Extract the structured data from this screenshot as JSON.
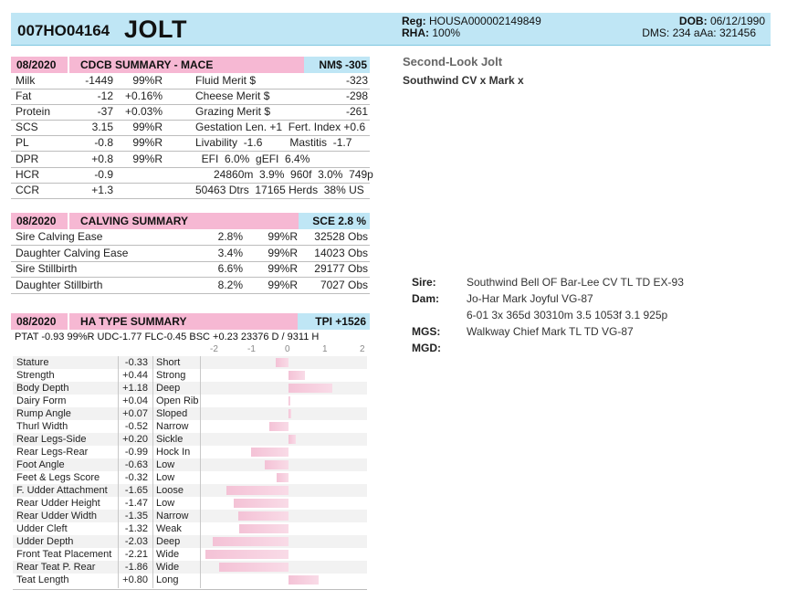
{
  "header": {
    "reg_code": "007HO04164",
    "name": "JOLT",
    "reg_label": "Reg:",
    "reg_value": "HOUSA000002149849",
    "rha_label": "RHA:",
    "rha_value": "100%",
    "dob_label": "DOB:",
    "dob_value": "06/12/1990",
    "dms_text": "DMS: 234  aAa: 321456"
  },
  "side": {
    "title": "Second-Look Jolt",
    "lineage": "Southwind CV x Mark x",
    "sire_label": "Sire:",
    "sire": "Southwind Bell OF Bar-Lee CV TL TD EX-93",
    "dam_label": "Dam:",
    "dam": "Jo-Har Mark Joyful VG-87",
    "dam_record": "6-01 3x 365d 30310m 3.5 1053f 3.1 925p",
    "mgs_label": "MGS:",
    "mgs": "Walkway Chief Mark TL TD VG-87",
    "mgd_label": "MGD:"
  },
  "cdcb": {
    "date": "08/2020",
    "title": "CDCB SUMMARY - MACE",
    "badge": "NM$ -305",
    "rows": [
      {
        "label": "Milk",
        "value": "-1449",
        "pct": "",
        "rel": "99%R",
        "label2": "Fluid Merit $",
        "value2": "-323"
      },
      {
        "label": "Fat",
        "value": "-12",
        "pct": "+0.16%",
        "rel": "",
        "label2": "Cheese Merit $",
        "value2": "-298"
      },
      {
        "label": "Protein",
        "value": "-37",
        "pct": "+0.03%",
        "rel": "",
        "label2": "Grazing Merit $",
        "value2": "-261"
      },
      {
        "label": "SCS",
        "value": "3.15",
        "pct": "",
        "rel": "99%R",
        "label2": "Gestation Len. +1  Fert. Index +0.6",
        "value2": ""
      },
      {
        "label": "PL",
        "value": "-0.8",
        "pct": "",
        "rel": "99%R",
        "label2": "Livability  -1.6         Mastitis  -1.7",
        "value2": ""
      },
      {
        "label": "DPR",
        "value": "+0.8",
        "pct": "",
        "rel": "99%R",
        "label2": "  EFI  6.0%  gEFI  6.4%",
        "value2": ""
      },
      {
        "label": "HCR",
        "value": "-0.9",
        "pct": "",
        "rel": "",
        "label2": "      24860m  3.9%  960f  3.0%  749p",
        "value2": ""
      },
      {
        "label": "CCR",
        "value": "+1.3",
        "pct": "",
        "rel": "",
        "label2": "50463 Dtrs  17165 Herds  38% US",
        "value2": ""
      }
    ]
  },
  "calving": {
    "date": "08/2020",
    "title": "CALVING SUMMARY",
    "badge": "SCE 2.8 %",
    "rows": [
      {
        "label": "Sire Calving Ease",
        "value": "2.8%",
        "rel": "99%R",
        "obs": "32528 Obs"
      },
      {
        "label": "Daughter Calving Ease",
        "value": "3.4%",
        "rel": "99%R",
        "obs": "14023 Obs"
      },
      {
        "label": "Sire Stillbirth",
        "value": "6.6%",
        "rel": "99%R",
        "obs": "29177 Obs"
      },
      {
        "label": "Daughter Stillbirth",
        "value": "8.2%",
        "rel": "99%R",
        "obs": "7027 Obs"
      }
    ]
  },
  "type": {
    "date": "08/2020",
    "title": "HA TYPE SUMMARY",
    "badge": "TPI +1526",
    "summary": "PTAT -0.93  99%R  UDC-1.77  FLC-0.45  BSC +0.23  23376 D /  9311 H",
    "scale": [
      "-2",
      "-1",
      "0",
      "1",
      "2"
    ],
    "traits": [
      {
        "name": "Stature",
        "value": "-0.33",
        "desc": "Short",
        "v": -0.33
      },
      {
        "name": "Strength",
        "value": "+0.44",
        "desc": "Strong",
        "v": 0.44
      },
      {
        "name": "Body Depth",
        "value": "+1.18",
        "desc": "Deep",
        "v": 1.18
      },
      {
        "name": "Dairy Form",
        "value": "+0.04",
        "desc": "Open Rib",
        "v": 0.04
      },
      {
        "name": "Rump Angle",
        "value": "+0.07",
        "desc": "Sloped",
        "v": 0.07
      },
      {
        "name": "Thurl Width",
        "value": "-0.52",
        "desc": "Narrow",
        "v": -0.52
      },
      {
        "name": "Rear Legs-Side",
        "value": "+0.20",
        "desc": "Sickle",
        "v": 0.2
      },
      {
        "name": "Rear Legs-Rear",
        "value": "-0.99",
        "desc": "Hock In",
        "v": -0.99
      },
      {
        "name": "Foot Angle",
        "value": "-0.63",
        "desc": "Low",
        "v": -0.63
      },
      {
        "name": "Feet & Legs Score",
        "value": "-0.32",
        "desc": "Low",
        "v": -0.32
      },
      {
        "name": "F. Udder Attachment",
        "value": "-1.65",
        "desc": "Loose",
        "v": -1.65
      },
      {
        "name": "Rear Udder Height",
        "value": "-1.47",
        "desc": "Low",
        "v": -1.47
      },
      {
        "name": "Rear Udder Width",
        "value": "-1.35",
        "desc": "Narrow",
        "v": -1.35
      },
      {
        "name": "Udder Cleft",
        "value": "-1.32",
        "desc": "Weak",
        "v": -1.32
      },
      {
        "name": "Udder Depth",
        "value": "-2.03",
        "desc": "Deep",
        "v": -2.03
      },
      {
        "name": "Front Teat Placement",
        "value": "-2.21",
        "desc": "Wide",
        "v": -2.21
      },
      {
        "name": "Rear Teat P. Rear",
        "value": "-1.86",
        "desc": "Wide",
        "v": -1.86
      },
      {
        "name": "Teat Length",
        "value": "+0.80",
        "desc": "Long",
        "v": 0.8
      }
    ]
  }
}
